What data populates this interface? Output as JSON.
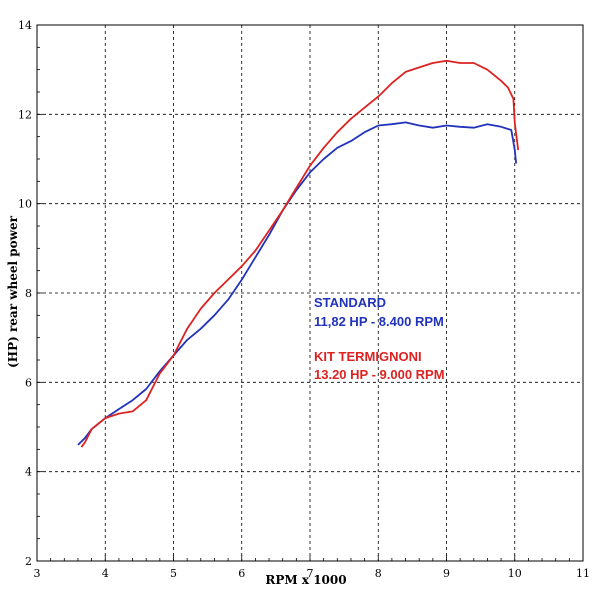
{
  "chart_data": {
    "type": "line",
    "title": "",
    "xlabel": "RPM x 1000",
    "ylabel": "(HP) rear wheel power",
    "xlim": [
      3,
      11
    ],
    "ylim": [
      2,
      14
    ],
    "x_ticks": [
      "3",
      "4",
      "5",
      "6",
      "7",
      "8",
      "9",
      "10",
      "11"
    ],
    "y_ticks": [
      "2",
      "4",
      "6",
      "8",
      "10",
      "12",
      "14"
    ],
    "grid": true,
    "grid_style": "dashed",
    "series": [
      {
        "name": "STANDARD",
        "color": "#2233bb",
        "x": [
          3.6,
          3.7,
          3.8,
          4.0,
          4.2,
          4.4,
          4.6,
          4.8,
          5.0,
          5.2,
          5.4,
          5.6,
          5.8,
          6.0,
          6.2,
          6.4,
          6.6,
          6.8,
          7.0,
          7.2,
          7.4,
          7.6,
          7.8,
          8.0,
          8.2,
          8.4,
          8.6,
          8.8,
          9.0,
          9.2,
          9.4,
          9.6,
          9.8,
          9.95,
          10.0,
          10.02
        ],
        "y": [
          4.6,
          4.75,
          4.95,
          5.2,
          5.4,
          5.6,
          5.85,
          6.25,
          6.6,
          6.95,
          7.2,
          7.5,
          7.85,
          8.3,
          8.8,
          9.3,
          9.85,
          10.3,
          10.7,
          11.0,
          11.25,
          11.4,
          11.6,
          11.75,
          11.78,
          11.82,
          11.75,
          11.7,
          11.75,
          11.72,
          11.7,
          11.78,
          11.72,
          11.65,
          11.2,
          10.9
        ]
      },
      {
        "name": "KIT TERMIGNONI",
        "color": "#dd2222",
        "x": [
          3.65,
          3.7,
          3.8,
          4.0,
          4.2,
          4.4,
          4.6,
          4.8,
          5.0,
          5.2,
          5.4,
          5.6,
          5.8,
          6.0,
          6.2,
          6.4,
          6.6,
          6.8,
          7.0,
          7.2,
          7.4,
          7.6,
          7.8,
          8.0,
          8.2,
          8.4,
          8.6,
          8.8,
          9.0,
          9.2,
          9.4,
          9.6,
          9.8,
          9.9,
          9.98,
          10.0,
          10.05
        ],
        "y": [
          4.55,
          4.65,
          4.95,
          5.2,
          5.3,
          5.35,
          5.6,
          6.2,
          6.6,
          7.2,
          7.65,
          8.0,
          8.3,
          8.6,
          8.95,
          9.4,
          9.85,
          10.35,
          10.85,
          11.25,
          11.6,
          11.9,
          12.15,
          12.4,
          12.7,
          12.95,
          13.05,
          13.15,
          13.2,
          13.15,
          13.15,
          13.0,
          12.75,
          12.6,
          12.35,
          11.8,
          11.2
        ]
      }
    ],
    "annotations": [
      {
        "text": "STANDARD",
        "color": "#2233bb"
      },
      {
        "text": "11,82 HP - 8.400 RPM",
        "color": "#2233bb"
      },
      {
        "text": "KIT TERMIGNONI",
        "color": "#dd2222"
      },
      {
        "text": "13.20 HP - 9.000 RPM",
        "color": "#dd2222"
      }
    ]
  }
}
